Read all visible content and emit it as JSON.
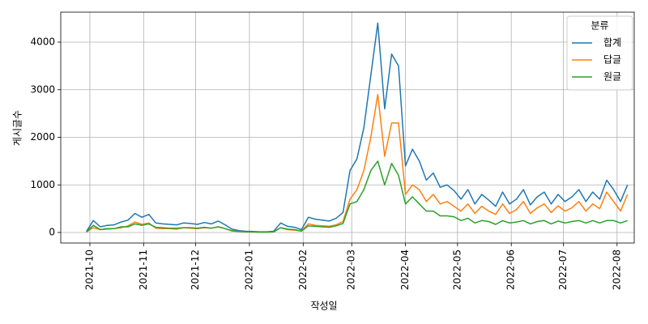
{
  "chart_data": {
    "type": "line",
    "xlabel": "작성일",
    "ylabel": "게시글수",
    "legend_title": "분류",
    "legend_loc": "upper right",
    "grid": true,
    "x": [
      -2,
      2,
      6,
      10,
      14,
      18,
      22,
      26,
      30,
      34,
      38,
      42,
      46,
      50,
      54,
      58,
      62,
      66,
      70,
      74,
      78,
      82,
      86,
      90,
      94,
      98,
      102,
      106,
      110,
      114,
      118,
      122,
      126,
      130,
      134,
      138,
      142,
      146,
      150,
      154,
      158,
      162,
      166,
      170,
      174,
      178,
      182,
      186,
      190,
      194,
      198,
      202,
      206,
      210,
      214,
      218,
      222,
      226,
      230,
      234,
      238,
      242,
      246,
      250,
      254,
      258,
      262,
      266,
      270,
      274,
      278,
      282,
      286,
      290,
      294,
      298,
      302,
      306,
      310
    ],
    "xlim": [
      -16.8,
      313.9
    ],
    "xticks": [
      {
        "value": 0,
        "label": "2021-10"
      },
      {
        "value": 31,
        "label": "2021-11"
      },
      {
        "value": 61,
        "label": "2021-12"
      },
      {
        "value": 92,
        "label": "2022-01"
      },
      {
        "value": 123,
        "label": "2022-02"
      },
      {
        "value": 151,
        "label": "2022-03"
      },
      {
        "value": 182,
        "label": "2022-04"
      },
      {
        "value": 212,
        "label": "2022-05"
      },
      {
        "value": 243,
        "label": "2022-06"
      },
      {
        "value": 273,
        "label": "2022-07"
      },
      {
        "value": 304,
        "label": "2022-08"
      }
    ],
    "ylim": [
      -221,
      4630
    ],
    "yticks": [
      0,
      1000,
      2000,
      3000,
      4000
    ],
    "series": [
      {
        "name": "합계",
        "color": "#1f77b4",
        "values": [
          20,
          250,
          120,
          150,
          160,
          220,
          260,
          400,
          320,
          380,
          200,
          180,
          170,
          160,
          200,
          190,
          170,
          210,
          180,
          240,
          160,
          70,
          40,
          25,
          20,
          15,
          15,
          25,
          200,
          130,
          110,
          60,
          320,
          280,
          260,
          240,
          300,
          420,
          1300,
          1550,
          2200,
          3300,
          4400,
          2600,
          3750,
          3500,
          1400,
          1750,
          1500,
          1100,
          1250,
          950,
          1000,
          880,
          700,
          900,
          600,
          800,
          680,
          550,
          850,
          600,
          700,
          900,
          580,
          750,
          850,
          600,
          800,
          650,
          750,
          900,
          650,
          850,
          700,
          1100,
          900,
          650,
          1000
        ]
      },
      {
        "name": "답글",
        "color": "#ff7f0e",
        "values": [
          10,
          100,
          60,
          70,
          80,
          100,
          140,
          220,
          170,
          200,
          90,
          80,
          80,
          70,
          100,
          90,
          80,
          100,
          90,
          120,
          80,
          30,
          20,
          10,
          10,
          8,
          8,
          10,
          100,
          60,
          50,
          30,
          180,
          150,
          140,
          130,
          160,
          230,
          700,
          900,
          1300,
          2000,
          2900,
          1600,
          2300,
          2300,
          800,
          1000,
          900,
          650,
          800,
          600,
          650,
          550,
          450,
          600,
          400,
          550,
          450,
          380,
          600,
          400,
          480,
          650,
          400,
          520,
          600,
          420,
          560,
          450,
          520,
          650,
          450,
          600,
          500,
          850,
          650,
          450,
          800
        ]
      },
      {
        "name": "원글",
        "color": "#2ca02c",
        "values": [
          10,
          150,
          60,
          80,
          80,
          120,
          120,
          180,
          150,
          180,
          110,
          100,
          90,
          90,
          100,
          100,
          90,
          110,
          90,
          120,
          80,
          40,
          20,
          15,
          10,
          7,
          7,
          15,
          100,
          70,
          60,
          30,
          140,
          130,
          120,
          110,
          140,
          190,
          600,
          650,
          900,
          1300,
          1500,
          1000,
          1450,
          1200,
          600,
          750,
          600,
          450,
          450,
          350,
          350,
          330,
          250,
          300,
          200,
          250,
          230,
          170,
          250,
          200,
          220,
          250,
          180,
          230,
          250,
          180,
          240,
          200,
          230,
          250,
          200,
          250,
          200,
          250,
          250,
          200,
          250
        ]
      }
    ]
  }
}
